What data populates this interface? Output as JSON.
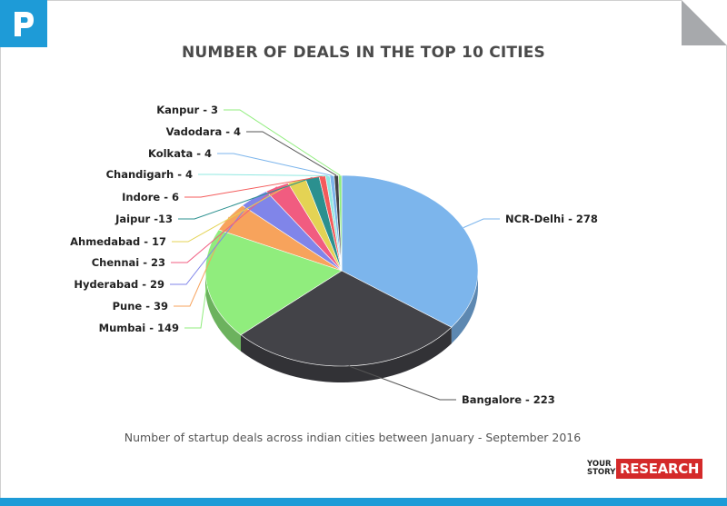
{
  "header": {
    "title": "NUMBER OF DEALS IN THE TOP 10 CITIES"
  },
  "footer": {
    "subtitle": "Number of startup deals across indian cities between January - September 2016",
    "brand_small": "YOUR STORY",
    "brand_big": "RESEARCH"
  },
  "icons": {
    "logo": "p-logo-icon",
    "corner": "page-fold-icon"
  },
  "colors": {
    "accent": "#1e9bd7",
    "brand_red": "#d42a2a"
  },
  "chart_data": {
    "type": "pie",
    "style": "3d",
    "title": "NUMBER OF DEALS IN THE TOP 10 CITIES",
    "categories": [
      "NCR-Delhi",
      "Bangalore",
      "Mumbai",
      "Pune",
      "Hyderabad",
      "Chennai",
      "Ahmedabad",
      "Jaipur",
      "Indore",
      "Chandigarh",
      "Kolkata",
      "Vadodara",
      "Kanpur"
    ],
    "values": [
      278,
      223,
      149,
      39,
      29,
      23,
      17,
      13,
      6,
      4,
      4,
      4,
      3
    ],
    "labels": [
      "NCR-Delhi - 278",
      "Bangalore - 223",
      "Mumbai - 149",
      "Pune - 39",
      "Hyderabad - 29",
      "Chennai - 23",
      "Ahmedabad - 17",
      "Jaipur -13",
      "Indore - 6",
      "Chandigarh - 4",
      "Kolkata - 4",
      "Vadodara - 4",
      "Kanpur - 3"
    ],
    "colors": [
      "#7cb5ec",
      "#434348",
      "#90ed7d",
      "#f7a35c",
      "#8085e9",
      "#f15c80",
      "#e4d354",
      "#2b908f",
      "#f45b5b",
      "#91e8e1",
      "#7cb5ec",
      "#434348",
      "#90ed7d"
    ]
  }
}
